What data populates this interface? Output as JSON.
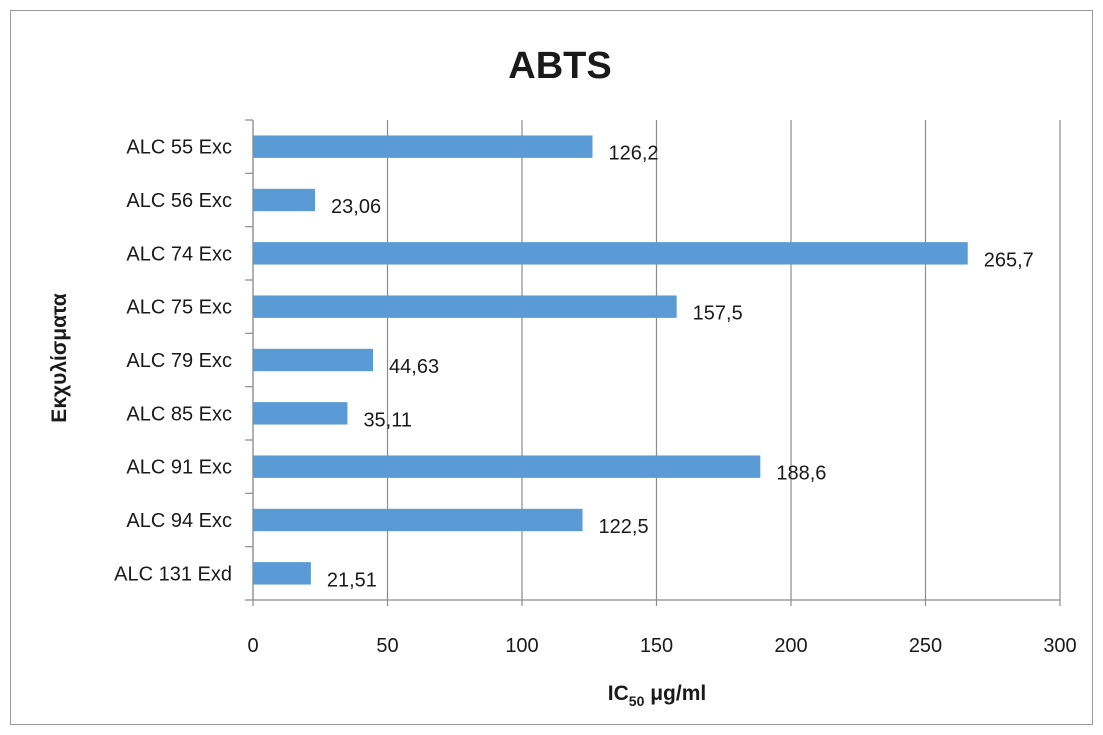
{
  "chart_data": {
    "type": "bar",
    "orientation": "horizontal",
    "title": "ABTS",
    "xlabel": {
      "main": "IC",
      "sub": "50",
      "rest": " μg/ml"
    },
    "ylabel": "Εκχυλίσματα",
    "categories": [
      "ALC 55 Exc",
      "ALC 56 Exc",
      "ALC 74 Exc",
      "ALC 75 Exc",
      "ALC 79 Exc",
      "ALC 85 Exc",
      "ALC 91 Exc",
      "ALC 94 Exc",
      "ALC 131 Exd"
    ],
    "values": [
      126.2,
      23.06,
      265.7,
      157.5,
      44.63,
      35.11,
      188.6,
      122.5,
      21.51
    ],
    "data_labels": [
      "126,2",
      "23,06",
      "265,7",
      "157,5",
      "44,63",
      "35,11",
      "188,6",
      "122,5",
      "21,51"
    ],
    "xticks": [
      0,
      50,
      100,
      150,
      200,
      250,
      300
    ],
    "xlim": [
      0,
      300
    ],
    "grid": true,
    "bar_color": "#5b9bd5"
  }
}
